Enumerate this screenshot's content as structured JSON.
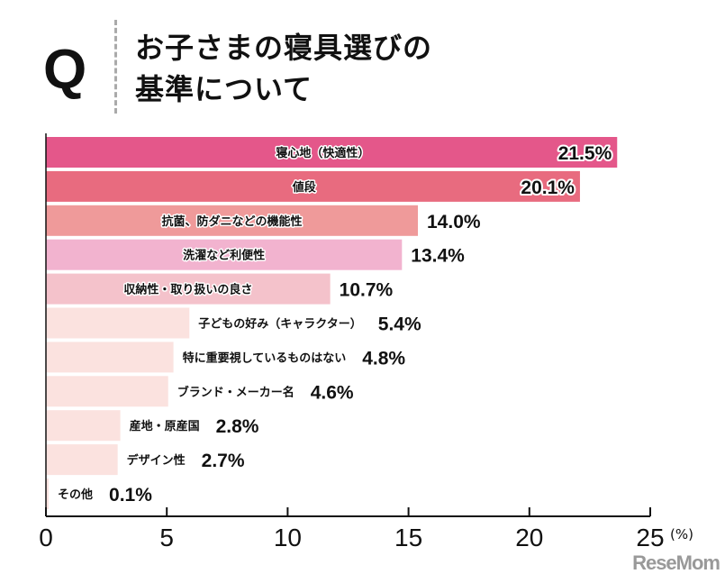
{
  "header": {
    "q_mark": "Q",
    "title_line1": "お子さまの寝具選びの",
    "title_line2": "基準について"
  },
  "logo": "ReseMom",
  "chart_data": {
    "type": "bar",
    "orientation": "horizontal",
    "categories": [
      "寝心地（快適性）",
      "値段",
      "抗菌、防ダニなどの機能性",
      "洗濯など利便性",
      "収納性・取り扱いの良さ",
      "子どもの好み（キャラクター）",
      "特に重要視しているものはない",
      "ブランド・メーカー名",
      "産地・原産国",
      "デザイン性",
      "その他"
    ],
    "values": [
      21.5,
      20.1,
      14.0,
      13.4,
      10.7,
      5.4,
      4.8,
      4.6,
      2.8,
      2.7,
      0.1
    ],
    "value_labels": [
      "21.5%",
      "20.1%",
      "14.0%",
      "13.4%",
      "10.7%",
      "5.4%",
      "4.8%",
      "4.6%",
      "2.8%",
      "2.7%",
      "0.1%"
    ],
    "colors": [
      "#e4578a",
      "#e86b7f",
      "#ef9a9a",
      "#f2b3cf",
      "#f4c2cb",
      "#fbe2df",
      "#fbe2df",
      "#fbe2df",
      "#fbe2df",
      "#fbe2df",
      "#fbe2df"
    ],
    "xlim": [
      0,
      25
    ],
    "xticks": [
      "0",
      "5",
      "10",
      "15",
      "20",
      "25"
    ],
    "xlabel_unit": "(%)",
    "title": "お子さまの寝具選びの基準について",
    "grid": false
  }
}
